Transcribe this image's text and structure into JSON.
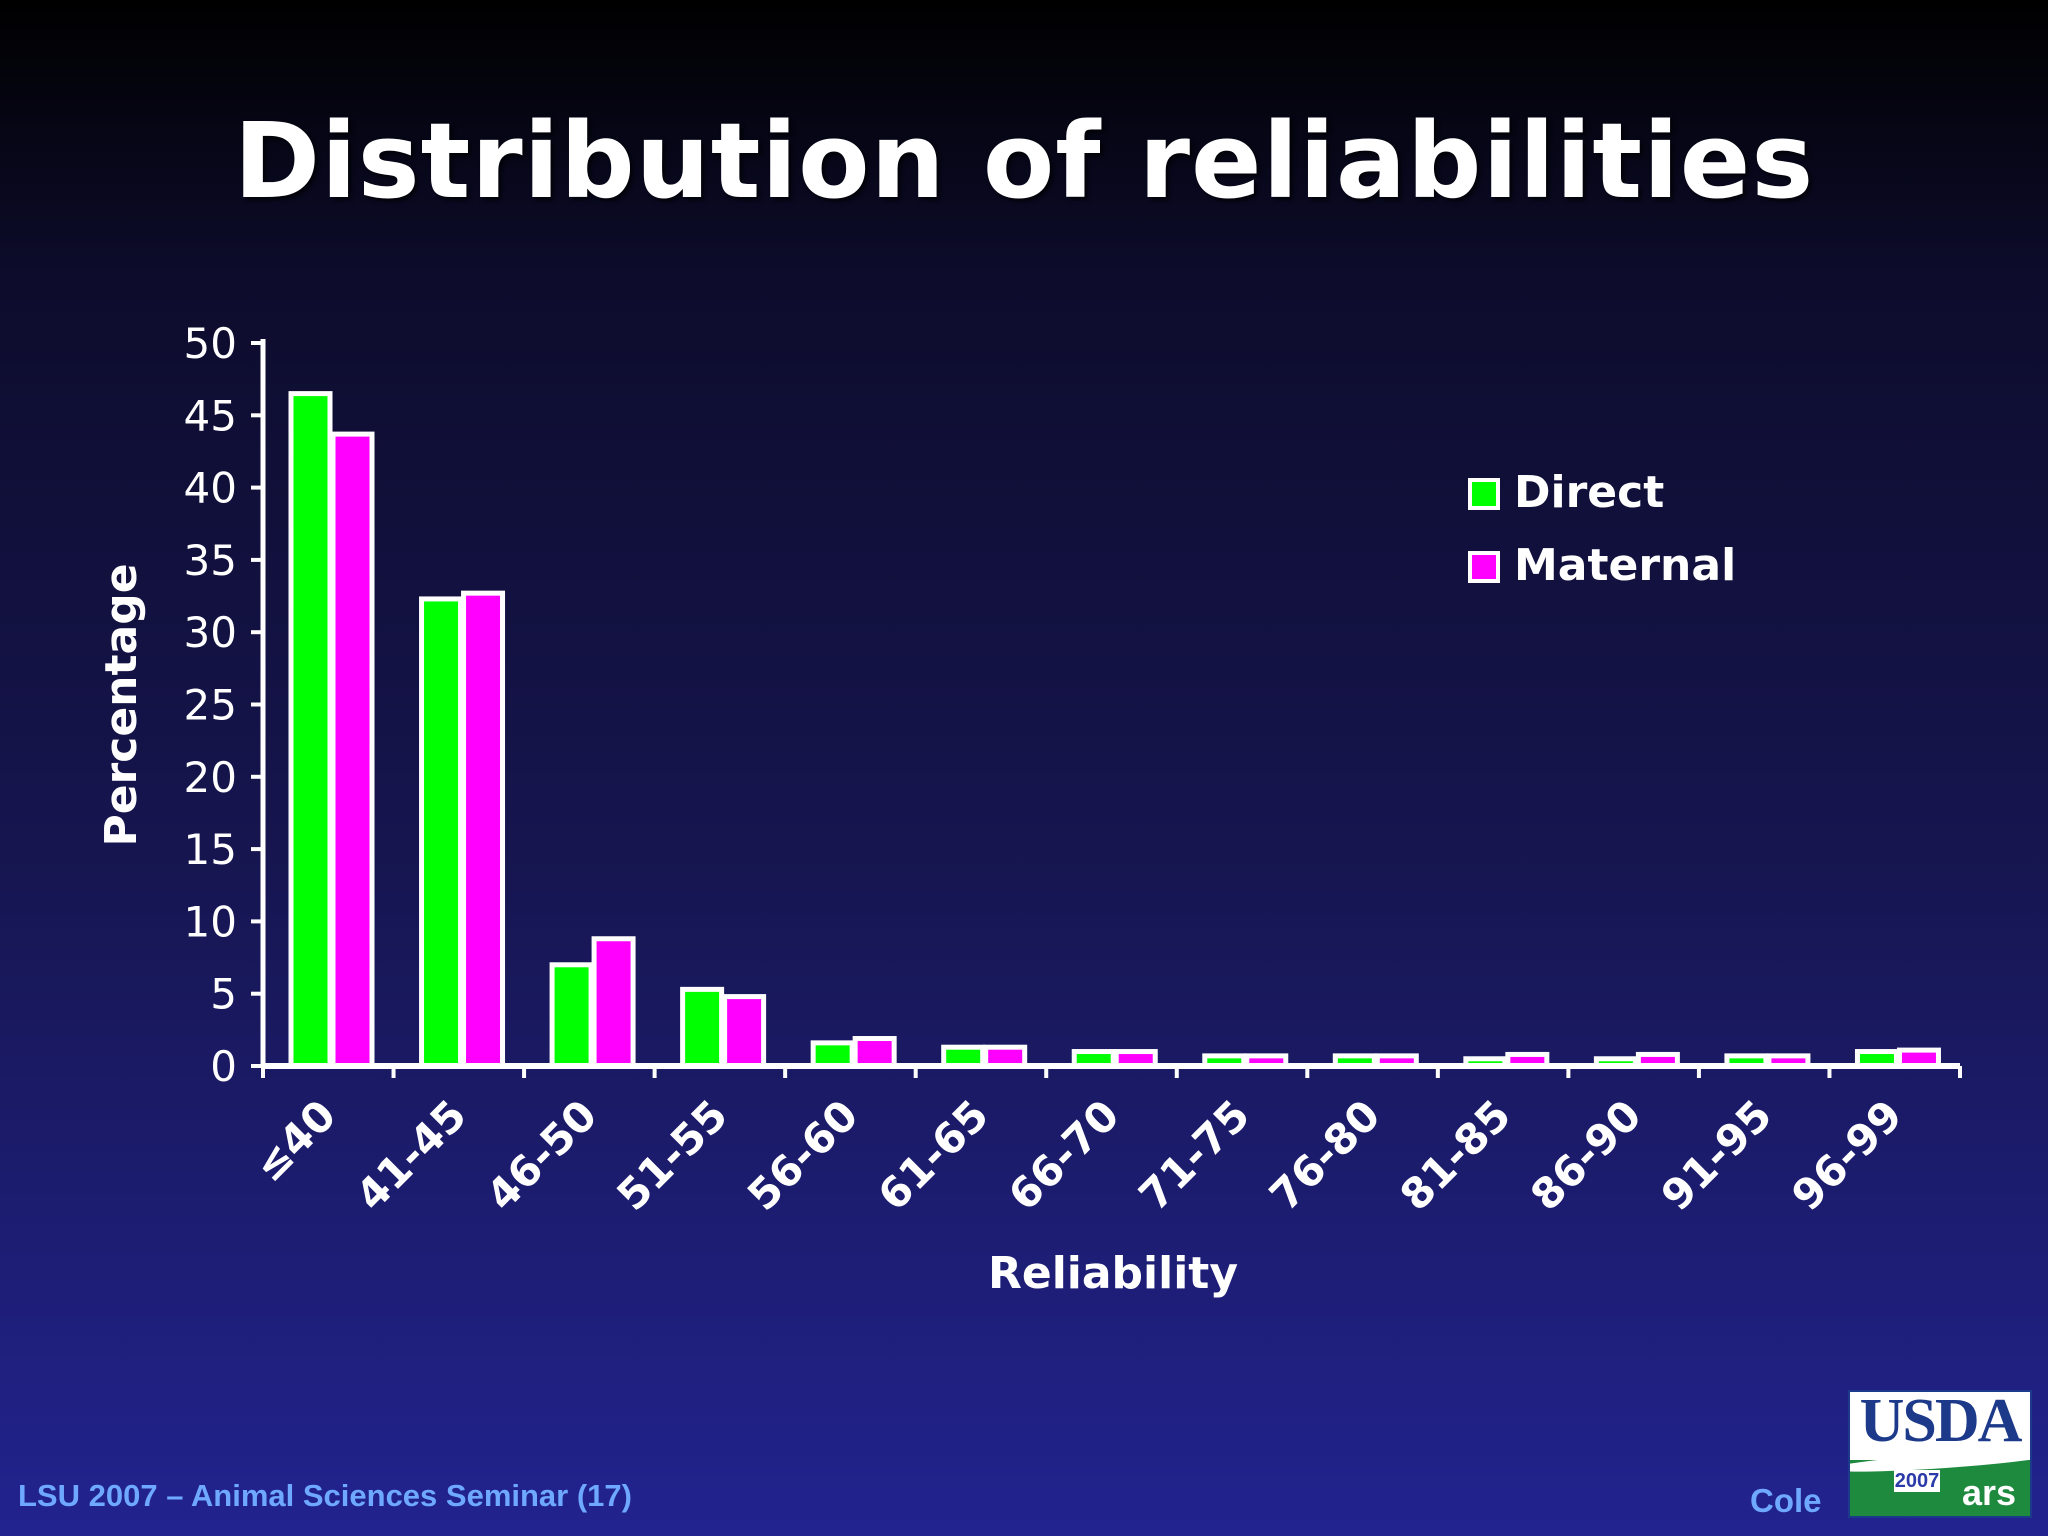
{
  "slide": {
    "title": "Distribution of reliabilities",
    "footer": "LSU 2007 – Animal Sciences Seminar (17)",
    "author": "Cole",
    "logo": {
      "text": "USDA",
      "year": "2007",
      "agency": "ars"
    }
  },
  "chart_data": {
    "type": "bar",
    "title": "",
    "xlabel": "Reliability",
    "ylabel": "Percentage",
    "ylim": [
      0,
      50
    ],
    "yticks": [
      0,
      5,
      10,
      15,
      20,
      25,
      30,
      35,
      40,
      45,
      50
    ],
    "grid": false,
    "legend_position": "top-right",
    "categories": [
      "≤40",
      "41-45",
      "46-50",
      "51-55",
      "56-60",
      "61-65",
      "66-70",
      "71-75",
      "76-80",
      "81-85",
      "86-90",
      "91-95",
      "96-99"
    ],
    "series": [
      {
        "name": "Direct",
        "color": "#00ff00",
        "values": [
          46.5,
          32.3,
          7.0,
          5.3,
          1.6,
          1.3,
          1.0,
          0.7,
          0.7,
          0.5,
          0.5,
          0.7,
          1.0
        ]
      },
      {
        "name": "Maternal",
        "color": "#ff00ff",
        "values": [
          43.7,
          32.7,
          8.8,
          4.8,
          1.9,
          1.3,
          1.0,
          0.7,
          0.7,
          0.8,
          0.8,
          0.7,
          1.1
        ]
      }
    ]
  }
}
